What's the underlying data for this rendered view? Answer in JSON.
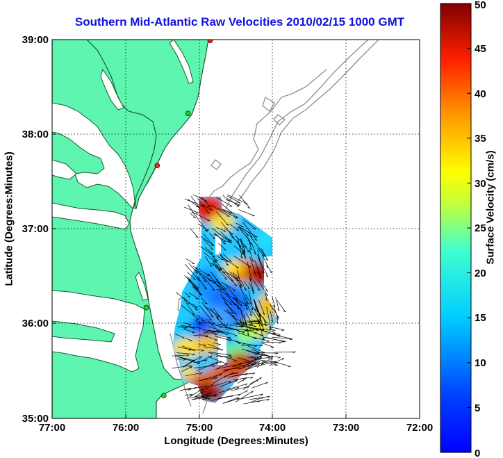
{
  "title": "Southern Mid-Atlantic Raw Velocities 2010/02/15 1000 GMT",
  "map": {
    "xlabel": "Longitude (Degrees:Minutes)",
    "ylabel": "Latitude (Degrees:Minutes)",
    "x_ticks": [
      "77:00",
      "76:00",
      "75:00",
      "74:00",
      "73:00",
      "72:00"
    ],
    "y_ticks": [
      "39:00",
      "38:00",
      "37:00",
      "36:00",
      "35:00"
    ],
    "lon_range": [
      -77,
      -72
    ],
    "lat_range": [
      35,
      39
    ],
    "grid": "dotted",
    "colors": {
      "land": "#5ef5b0",
      "coastline": "#1a5a30",
      "bathymetry": "#8c8c8c",
      "station_active": "#22cc22",
      "station_inactive": "#ee2222",
      "vectors": "#000000"
    }
  },
  "colorbar": {
    "label": "Surface Velocity (cm/s)",
    "ticks": [
      "50",
      "45",
      "40",
      "35",
      "30",
      "25",
      "20",
      "15",
      "10",
      "5",
      "0"
    ],
    "range": [
      0,
      50
    ],
    "colormap": "jet"
  },
  "stations": [
    {
      "lon": -74.85,
      "lat": 38.99,
      "status": "inactive"
    },
    {
      "lon": -75.15,
      "lat": 38.22,
      "status": "active"
    },
    {
      "lon": -75.57,
      "lat": 37.67,
      "status": "inactive"
    },
    {
      "lon": -75.72,
      "lat": 36.17,
      "status": "active"
    },
    {
      "lon": -75.48,
      "lat": 35.24,
      "status": "active"
    }
  ]
}
